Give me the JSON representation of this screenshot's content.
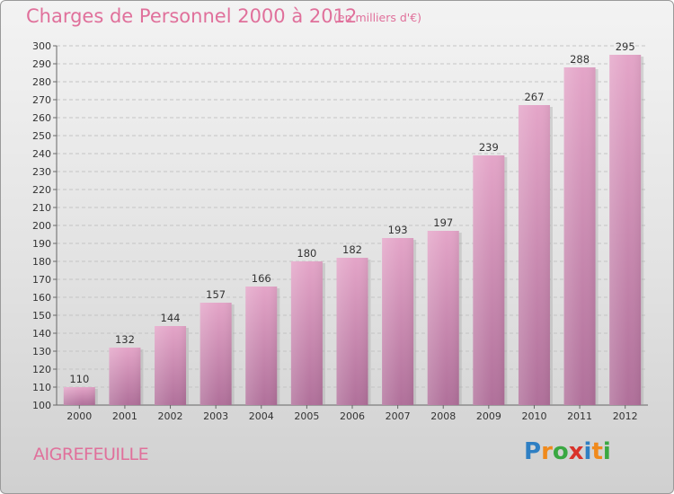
{
  "header": {
    "title": "Charges de Personnel 2000 à 2012",
    "subtitle": "(en milliers d'€)"
  },
  "footer": {
    "commune": "AIGREFEUILLE",
    "logo": {
      "letters": [
        "P",
        "r",
        "o",
        "x",
        "i",
        "t",
        "i"
      ],
      "colors": [
        "#2e7fc3",
        "#f08a1c",
        "#3aa842",
        "#d9322a",
        "#2e7fc3",
        "#f08a1c",
        "#3aa842"
      ]
    }
  },
  "chart_data": {
    "type": "bar",
    "categories": [
      "2000",
      "2001",
      "2002",
      "2003",
      "2004",
      "2005",
      "2006",
      "2007",
      "2008",
      "2009",
      "2010",
      "2011",
      "2012"
    ],
    "values": [
      110,
      132,
      144,
      157,
      166,
      180,
      182,
      193,
      197,
      239,
      267,
      288,
      295
    ],
    "ylim": [
      100,
      300
    ],
    "yticks": [
      100,
      110,
      120,
      130,
      140,
      150,
      160,
      170,
      180,
      190,
      200,
      210,
      220,
      230,
      240,
      250,
      260,
      270,
      280,
      290,
      300
    ],
    "grid": true,
    "bar_color": "#d48cb3"
  }
}
